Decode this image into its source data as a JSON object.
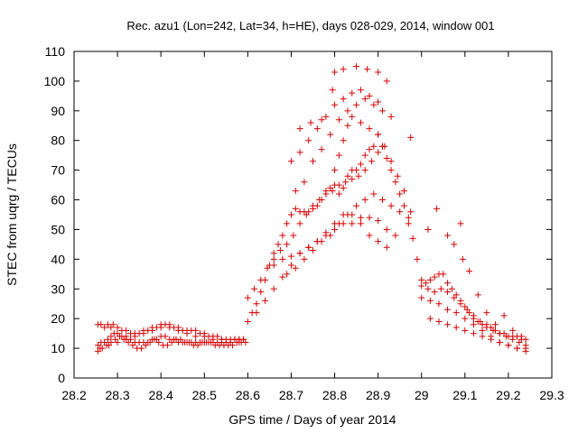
{
  "chart_data": {
    "type": "scatter",
    "title": "Rec. azu1 (Lon=242, Lat=34, h=HE), days 028-029, 2014, window 001",
    "xlabel": "GPS time / Days of year 2014",
    "ylabel": "STEC from uqrg / TECUs",
    "xlim": [
      28.2,
      29.3
    ],
    "ylim": [
      0,
      110
    ],
    "xticks": [
      "28.2",
      "28.3",
      "28.4",
      "28.5",
      "28.6",
      "28.7",
      "28.8",
      "28.9",
      "29",
      "29.1",
      "29.2",
      "29.3"
    ],
    "yticks": [
      "0",
      "10",
      "20",
      "30",
      "40",
      "50",
      "60",
      "70",
      "80",
      "90",
      "100",
      "110"
    ],
    "marker": "plus",
    "color": "#dd0000",
    "grid": false,
    "series": [
      {
        "name": "STEC",
        "x": [
          28.255,
          28.262,
          28.27,
          28.278,
          28.285,
          28.292,
          28.3,
          28.31,
          28.32,
          28.33,
          28.34,
          28.35,
          28.36,
          28.37,
          28.38,
          28.39,
          28.4,
          28.41,
          28.42,
          28.43,
          28.44,
          28.45,
          28.46,
          28.47,
          28.48,
          28.49,
          28.5,
          28.51,
          28.52,
          28.53,
          28.54,
          28.55,
          28.56,
          28.57,
          28.58,
          28.59,
          28.255,
          28.262,
          28.27,
          28.278,
          28.285,
          28.29,
          28.3,
          28.31,
          28.32,
          28.33,
          28.34,
          28.35,
          28.36,
          28.37,
          28.38,
          28.39,
          28.4,
          28.41,
          28.42,
          28.43,
          28.44,
          28.45,
          28.46,
          28.47,
          28.48,
          28.49,
          28.5,
          28.51,
          28.52,
          28.53,
          28.54,
          28.55,
          28.56,
          28.57,
          28.58,
          28.59,
          28.255,
          28.265,
          28.275,
          28.285,
          28.295,
          28.305,
          28.315,
          28.325,
          28.335,
          28.345,
          28.355,
          28.365,
          28.375,
          28.385,
          28.395,
          28.405,
          28.415,
          28.425,
          28.435,
          28.445,
          28.455,
          28.465,
          28.475,
          28.485,
          28.495,
          28.505,
          28.515,
          28.525,
          28.535,
          28.545,
          28.555,
          28.565,
          28.575,
          28.585,
          28.595,
          28.26,
          28.28,
          28.3,
          28.32,
          28.34,
          28.36,
          28.38,
          28.4,
          28.42,
          28.44,
          28.46,
          28.48,
          28.5,
          28.52,
          28.54,
          28.56,
          28.58,
          28.6,
          28.61,
          28.62,
          28.63,
          28.64,
          28.65,
          28.66,
          28.67,
          28.68,
          28.69,
          28.7,
          28.71,
          28.72,
          28.73,
          28.74,
          28.75,
          28.76,
          28.77,
          28.78,
          28.79,
          28.8,
          28.81,
          28.82,
          28.83,
          28.84,
          28.85,
          28.86,
          28.87,
          28.88,
          28.89,
          28.9,
          28.91,
          28.92,
          28.93,
          28.94,
          28.95,
          28.96,
          28.97,
          28.98,
          28.6,
          28.615,
          28.63,
          28.645,
          28.66,
          28.675,
          28.69,
          28.705,
          28.72,
          28.735,
          28.75,
          28.765,
          28.78,
          28.795,
          28.81,
          28.825,
          28.84,
          28.855,
          28.87,
          28.885,
          28.9,
          28.915,
          28.93,
          28.945,
          28.96,
          28.975,
          28.62,
          28.64,
          28.66,
          28.68,
          28.7,
          28.72,
          28.74,
          28.76,
          28.78,
          28.8,
          28.82,
          28.84,
          28.86,
          28.88,
          28.9,
          28.92,
          28.94,
          28.66,
          28.68,
          28.7,
          28.72,
          28.74,
          28.76,
          28.78,
          28.8,
          28.82,
          28.84,
          28.86,
          28.88,
          28.9,
          28.92,
          28.69,
          28.71,
          28.73,
          28.75,
          28.77,
          28.79,
          28.81,
          28.83,
          28.85,
          28.87,
          28.89,
          28.91,
          28.93,
          28.95,
          28.97,
          28.71,
          28.73,
          28.75,
          28.77,
          28.79,
          28.81,
          28.83,
          28.85,
          28.87,
          28.89,
          28.91,
          28.93,
          28.7,
          28.72,
          28.74,
          28.76,
          28.78,
          28.8,
          28.82,
          28.84,
          28.86,
          28.88,
          28.9,
          28.72,
          28.745,
          28.77,
          28.795,
          28.8,
          28.82,
          28.85,
          28.875,
          28.9,
          28.92,
          28.975,
          28.78,
          28.8,
          28.81,
          28.82,
          28.83,
          28.84,
          28.86,
          28.88,
          28.9,
          28.91,
          29.0,
          29.01,
          29.02,
          29.03,
          29.04,
          29.05,
          29.06,
          29.07,
          29.08,
          29.09,
          29.1,
          29.11,
          29.12,
          29.13,
          29.14,
          29.15,
          29.16,
          29.17,
          29.18,
          29.19,
          29.2,
          29.21,
          29.22,
          29.23,
          29.24,
          29.0,
          29.015,
          29.03,
          29.045,
          29.06,
          29.075,
          29.09,
          29.105,
          29.12,
          29.135,
          29.15,
          29.165,
          29.18,
          29.195,
          29.21,
          29.225,
          29.24,
          29.0,
          29.02,
          29.04,
          29.06,
          29.08,
          29.1,
          29.12,
          29.14,
          29.16,
          29.18,
          29.2,
          29.22,
          29.24,
          29.02,
          29.04,
          29.06,
          29.08,
          29.1,
          29.12,
          29.14,
          29.16,
          29.18,
          29.2,
          29.22,
          29.24,
          28.99,
          29.015,
          29.035,
          29.06,
          29.075,
          29.09,
          29.095,
          29.11,
          29.13,
          29.15,
          29.17,
          29.19,
          29.21,
          29.23
        ],
        "y": [
          11,
          12,
          12,
          13,
          14,
          15,
          15,
          14,
          14,
          13,
          12,
          12,
          12,
          12,
          13,
          13,
          14,
          14,
          13,
          13,
          12,
          12,
          12,
          12,
          12,
          12,
          12,
          12,
          12,
          12,
          12,
          12,
          12,
          13,
          13,
          13,
          18,
          18,
          17,
          18,
          17,
          18,
          17,
          16,
          16,
          15,
          15,
          15,
          16,
          16,
          17,
          17,
          18,
          18,
          18,
          17,
          17,
          16,
          16,
          16,
          16,
          15,
          15,
          14,
          14,
          14,
          13,
          13,
          13,
          13,
          13,
          13,
          9,
          10,
          11,
          12,
          13,
          14,
          13,
          12,
          11,
          10,
          10,
          11,
          12,
          13,
          12,
          11,
          11,
          12,
          13,
          13,
          12,
          12,
          11,
          11,
          12,
          12,
          12,
          11,
          11,
          11,
          11,
          11,
          12,
          12,
          12,
          10,
          11,
          12,
          13,
          14,
          15,
          16,
          17,
          17,
          16,
          15,
          14,
          14,
          13,
          13,
          12,
          12,
          19,
          22,
          25,
          29,
          33,
          38,
          42,
          45,
          48,
          52,
          55,
          57,
          56,
          56,
          56,
          58,
          58,
          60,
          62,
          64,
          65,
          62,
          64,
          68,
          70,
          70,
          72,
          75,
          77,
          78,
          82,
          78,
          74,
          70,
          66,
          62,
          58,
          52,
          47,
          27,
          30,
          33,
          37,
          40,
          43,
          45,
          48,
          52,
          55,
          57,
          60,
          62,
          63,
          65,
          66,
          67,
          68,
          70,
          73,
          76,
          78,
          73,
          68,
          63,
          56,
          22,
          26,
          30,
          34,
          38,
          42,
          44,
          46,
          49,
          52,
          55,
          55,
          54,
          54,
          53,
          50,
          48,
          38,
          40,
          41,
          42,
          44,
          46,
          48,
          50,
          52,
          52,
          52,
          48,
          46,
          44,
          35,
          37,
          40,
          43,
          46,
          48,
          52,
          55,
          58,
          60,
          62,
          60,
          58,
          56,
          54,
          63,
          66,
          73,
          77,
          82,
          87,
          90,
          92,
          94,
          92,
          90,
          88,
          73,
          76,
          80,
          84,
          88,
          92,
          94,
          96,
          97,
          95,
          93,
          84,
          86,
          87,
          97,
          103,
          104,
          105,
          104,
          103,
          100,
          81,
          63,
          70,
          75,
          80,
          85,
          88,
          86,
          84,
          82,
          78,
          33,
          32,
          33,
          34,
          35,
          35,
          32,
          30,
          28,
          26,
          24,
          22,
          20,
          19,
          18,
          18,
          17,
          16,
          15,
          15,
          14,
          14,
          14,
          13,
          13,
          31,
          30,
          29,
          30,
          29,
          27,
          25,
          23,
          21,
          19,
          17,
          16,
          15,
          14,
          13,
          12,
          11,
          27,
          26,
          25,
          23,
          22,
          20,
          18,
          16,
          14,
          12,
          11,
          10,
          10,
          20,
          19,
          18,
          17,
          16,
          15,
          14,
          13,
          12,
          11,
          10,
          9,
          40,
          50,
          57,
          48,
          45,
          52,
          40,
          36,
          28,
          22,
          18,
          21,
          16,
          14
        ]
      }
    ]
  }
}
